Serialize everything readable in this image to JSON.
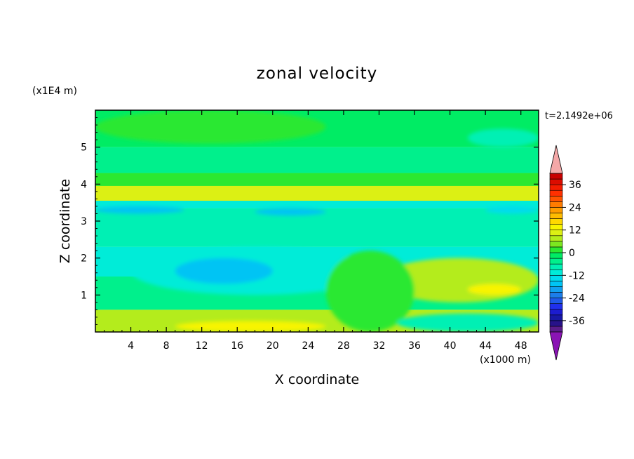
{
  "chart_data": {
    "type": "heatmap",
    "title": "zonal velocity",
    "xlabel": "X coordinate",
    "ylabel": "Z coordinate",
    "x_unit_label": "(x1000 m)",
    "y_unit_label": "(x1E4 m)",
    "time_label": "t=2.1492e+06",
    "x_ticks": [
      "4",
      "8",
      "12",
      "16",
      "20",
      "24",
      "28",
      "32",
      "36",
      "40",
      "44",
      "48"
    ],
    "y_ticks": [
      "1",
      "2",
      "3",
      "4",
      "5"
    ],
    "xlim": [
      0,
      50
    ],
    "ylim": [
      0,
      6
    ],
    "colorbar": {
      "tick_labels": [
        "36",
        "24",
        "12",
        "0",
        "-12",
        "-24",
        "-36"
      ],
      "range": [
        -42,
        42
      ],
      "levels": [
        -42,
        -39,
        -36,
        -33,
        -30,
        -27,
        -24,
        -21,
        -18,
        -15,
        -12,
        -9,
        -6,
        -3,
        0,
        3,
        6,
        9,
        12,
        15,
        18,
        21,
        24,
        27,
        30,
        33,
        36,
        39,
        42
      ],
      "colors": [
        "#5a1c8a",
        "#27128a",
        "#1818a6",
        "#1c1cd0",
        "#2030ec",
        "#1f5ae8",
        "#1c7eea",
        "#12a0f0",
        "#00c4f4",
        "#00dcee",
        "#00ecd8",
        "#00f0b4",
        "#00f08c",
        "#00ec64",
        "#2ce830",
        "#7ce820",
        "#b4ec1c",
        "#dcf014",
        "#f8f400",
        "#ffd800",
        "#ffbc00",
        "#ff9c00",
        "#ff7c00",
        "#ff5400",
        "#ff3000",
        "#f41c00",
        "#dc0c00",
        "#c80000"
      ],
      "under_color": "#8a14b4",
      "over_color": "#f4a8a8"
    },
    "field_bands": [
      {
        "z_range": [
          5.0,
          6.0
        ],
        "value": -3
      },
      {
        "z_range": [
          4.3,
          5.0
        ],
        "value": -6
      },
      {
        "z_range": [
          3.95,
          4.3
        ],
        "value": 2
      },
      {
        "z_range": [
          3.55,
          3.95
        ],
        "value": 10
      },
      {
        "z_range": [
          3.35,
          3.55
        ],
        "value": -11
      },
      {
        "z_range": [
          2.3,
          3.35
        ],
        "value": -8
      },
      {
        "z_range": [
          1.5,
          2.3
        ],
        "value": -10
      },
      {
        "z_range": [
          0.6,
          1.5
        ],
        "value": -4
      },
      {
        "z_range": [
          0.0,
          0.6
        ],
        "value": 6
      }
    ],
    "features": [
      {
        "name": "upper-green-tongue",
        "x": [
          0,
          26
        ],
        "z": [
          5.1,
          6.0
        ],
        "value": 1
      },
      {
        "name": "upper-right-patch",
        "x": [
          42,
          50
        ],
        "z": [
          5.0,
          5.5
        ],
        "value": -9
      },
      {
        "name": "blue-streak-left",
        "x": [
          0,
          10
        ],
        "z": [
          3.2,
          3.4
        ],
        "value": -16
      },
      {
        "name": "blue-streak-mid",
        "x": [
          18,
          26
        ],
        "z": [
          3.15,
          3.35
        ],
        "value": -16
      },
      {
        "name": "blue-streak-right",
        "x": [
          44,
          50
        ],
        "z": [
          3.2,
          3.4
        ],
        "value": -15
      },
      {
        "name": "cyan-core",
        "x": [
          4,
          32
        ],
        "z": [
          1.0,
          2.3
        ],
        "value": -12
      },
      {
        "name": "blue-core",
        "x": [
          9,
          20
        ],
        "z": [
          1.3,
          2.0
        ],
        "value": -17
      },
      {
        "name": "right-yellow-green-lobe",
        "x": [
          32,
          50
        ],
        "z": [
          0.8,
          2.0
        ],
        "value": 8
      },
      {
        "name": "right-yellow-core",
        "x": [
          42,
          48
        ],
        "z": [
          1.0,
          1.3
        ],
        "value": 14
      },
      {
        "name": "green-column",
        "x": [
          26,
          36
        ],
        "z": [
          0.0,
          2.2
        ],
        "value": 2
      },
      {
        "name": "bottom-yellow",
        "x": [
          9,
          26
        ],
        "z": [
          0.0,
          0.3
        ],
        "value": 12
      },
      {
        "name": "bottom-right-cyan",
        "x": [
          34,
          50
        ],
        "z": [
          0.0,
          0.5
        ],
        "value": -9
      }
    ]
  }
}
